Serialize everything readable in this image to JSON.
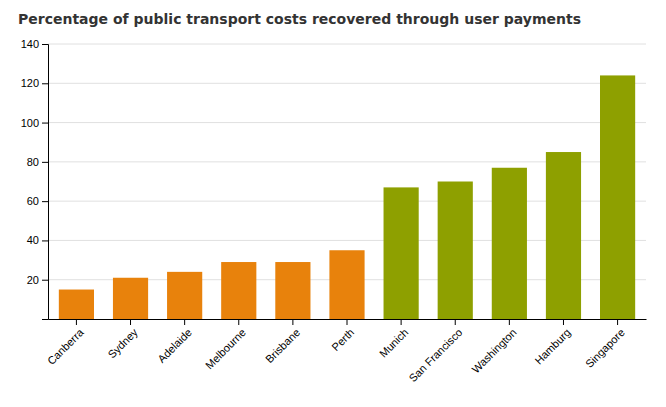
{
  "chart_data": {
    "type": "bar",
    "title": "Percentage of public transport costs recovered through user payments",
    "categories": [
      "Canberra",
      "Sydney",
      "Adelaide",
      "Melbourne",
      "Brisbane",
      "Perth",
      "Munich",
      "San Francisco",
      "Washington",
      "Hamburg",
      "Singapore"
    ],
    "values": [
      15,
      21,
      24,
      29,
      29,
      35,
      67,
      70,
      77,
      85,
      124
    ],
    "colors": [
      "#E8820C",
      "#E8820C",
      "#E8820C",
      "#E8820C",
      "#E8820C",
      "#E8820C",
      "#8EA000",
      "#8EA000",
      "#8EA000",
      "#8EA000",
      "#8EA000"
    ],
    "ylim": [
      0,
      140
    ],
    "yticks": [
      20,
      40,
      60,
      80,
      100,
      120,
      140
    ],
    "grid": true
  }
}
